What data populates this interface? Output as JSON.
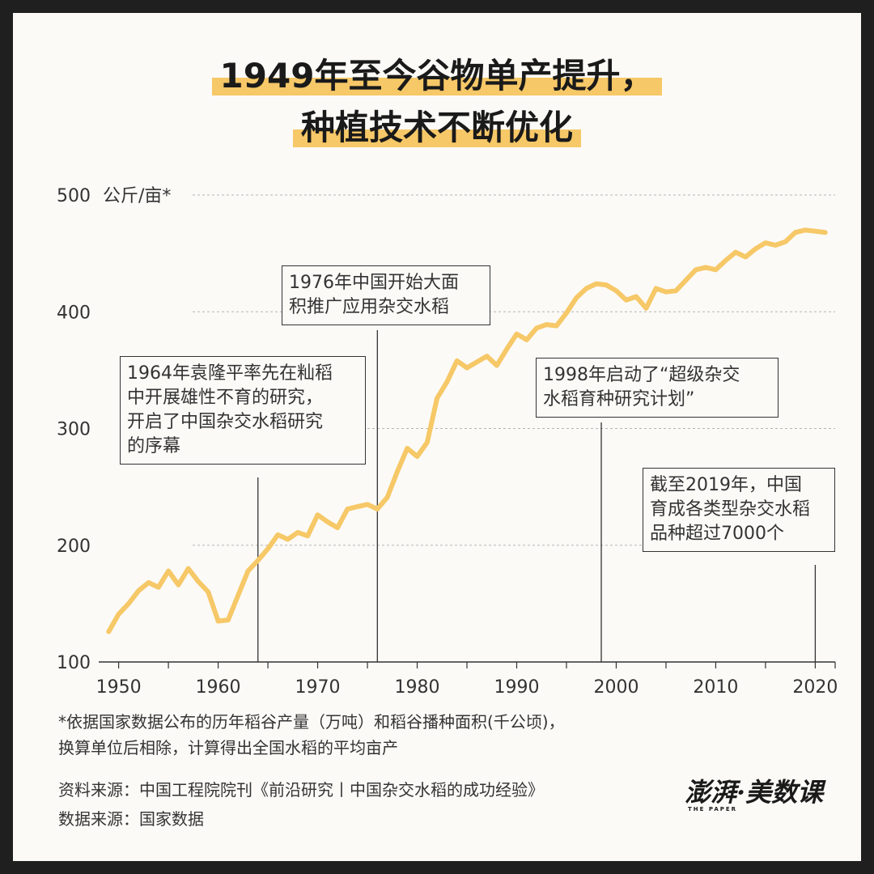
{
  "title": {
    "line1": "1949年至今谷物单产提升，",
    "line2": "种植技术不断优化"
  },
  "chart_data": {
    "type": "line",
    "ylabel": "公斤/亩*",
    "ylim": [
      100,
      500
    ],
    "yticks": [
      100,
      200,
      300,
      400,
      500
    ],
    "xlim": [
      1948,
      2022
    ],
    "xticks": [
      1950,
      1960,
      1970,
      1980,
      1990,
      2000,
      2010,
      2020
    ],
    "grid": "horizontal dotted",
    "line_color": "#f6c867",
    "series": [
      {
        "values": [
          [
            1949,
            126
          ],
          [
            1950,
            141
          ],
          [
            1951,
            150
          ],
          [
            1952,
            161
          ],
          [
            1953,
            168
          ],
          [
            1954,
            164
          ],
          [
            1955,
            178
          ],
          [
            1956,
            166
          ],
          [
            1957,
            180
          ],
          [
            1958,
            169
          ],
          [
            1959,
            160
          ],
          [
            1960,
            135
          ],
          [
            1961,
            136
          ],
          [
            1962,
            157
          ],
          [
            1963,
            178
          ],
          [
            1964,
            187
          ],
          [
            1965,
            197
          ],
          [
            1966,
            209
          ],
          [
            1967,
            205
          ],
          [
            1968,
            211
          ],
          [
            1969,
            208
          ],
          [
            1970,
            226
          ],
          [
            1971,
            220
          ],
          [
            1972,
            215
          ],
          [
            1973,
            231
          ],
          [
            1974,
            233
          ],
          [
            1975,
            235
          ],
          [
            1976,
            231
          ],
          [
            1977,
            241
          ],
          [
            1978,
            263
          ],
          [
            1979,
            283
          ],
          [
            1980,
            276
          ],
          [
            1981,
            288
          ],
          [
            1982,
            326
          ],
          [
            1983,
            340
          ],
          [
            1984,
            358
          ],
          [
            1985,
            352
          ],
          [
            1986,
            357
          ],
          [
            1987,
            362
          ],
          [
            1988,
            354
          ],
          [
            1989,
            368
          ],
          [
            1990,
            381
          ],
          [
            1991,
            376
          ],
          [
            1992,
            386
          ],
          [
            1993,
            389
          ],
          [
            1994,
            388
          ],
          [
            1995,
            399
          ],
          [
            1996,
            412
          ],
          [
            1997,
            420
          ],
          [
            1998,
            424
          ],
          [
            1999,
            423
          ],
          [
            2000,
            418
          ],
          [
            2001,
            410
          ],
          [
            2002,
            413
          ],
          [
            2003,
            403
          ],
          [
            2004,
            420
          ],
          [
            2005,
            417
          ],
          [
            2006,
            418
          ],
          [
            2007,
            427
          ],
          [
            2008,
            436
          ],
          [
            2009,
            438
          ],
          [
            2010,
            436
          ],
          [
            2011,
            444
          ],
          [
            2012,
            451
          ],
          [
            2013,
            447
          ],
          [
            2014,
            454
          ],
          [
            2015,
            459
          ],
          [
            2016,
            457
          ],
          [
            2017,
            460
          ],
          [
            2018,
            468
          ],
          [
            2019,
            470
          ],
          [
            2020,
            469
          ],
          [
            2021,
            468
          ]
        ]
      }
    ],
    "annotations": [
      {
        "id": "a1964",
        "x": 1964,
        "lines": [
          "1964年袁隆平率先在籼稻",
          "中开展雄性不育的研究，",
          "开启了中国杂交水稻研究",
          "的序幕"
        ]
      },
      {
        "id": "a1976",
        "x": 1976,
        "lines": [
          "1976年中国开始大面",
          "积推广应用杂交水稻"
        ]
      },
      {
        "id": "a1998",
        "x": 1998.5,
        "lines": [
          "1998年启动了“超级杂交",
          "水稻育种研究计划”"
        ]
      },
      {
        "id": "a2019",
        "x": 2020,
        "lines": [
          "截至2019年，中国",
          "育成各类型杂交水稻",
          "品种超过7000个"
        ]
      }
    ]
  },
  "footnote": {
    "line1": "*依据国家数据公布的历年稻谷产量（万吨）和稻谷播种面积(千公顷)，",
    "line2": "换算单位后相除，计算得出全国水稻的平均亩产"
  },
  "source": "资料来源：中国工程院院刊《前沿研究丨中国杂交水稻的成功经验》",
  "data_source": "数据来源：国家数据",
  "logo": {
    "main": "澎湃·美数课",
    "sub": "THE PAPER"
  }
}
